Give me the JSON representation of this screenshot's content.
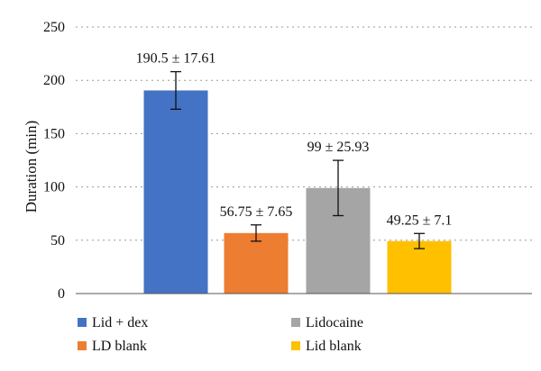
{
  "chart_data": {
    "type": "bar",
    "categories": [
      "Lid + dex",
      "LD blank",
      "Lidocaine",
      "Lid blank"
    ],
    "values": [
      190.5,
      56.75,
      99,
      49.25
    ],
    "errors": [
      17.61,
      7.65,
      25.93,
      7.1
    ],
    "data_labels": [
      "190.5 ± 17.61",
      "56.75 ± 7.65",
      "99 ± 25.93",
      "49.25 ± 7.1"
    ],
    "colors": [
      "#4472C4",
      "#ED7D31",
      "#A5A5A5",
      "#FFC000"
    ],
    "ylabel": "Duration (min)",
    "ylim": [
      0,
      250
    ],
    "yticks": [
      "0",
      "50",
      "100",
      "150",
      "200",
      "250"
    ],
    "grid": true,
    "legend_position": "bottom",
    "legend": [
      "Lid + dex",
      "LD blank",
      "Lidocaine",
      "Lid blank"
    ]
  }
}
